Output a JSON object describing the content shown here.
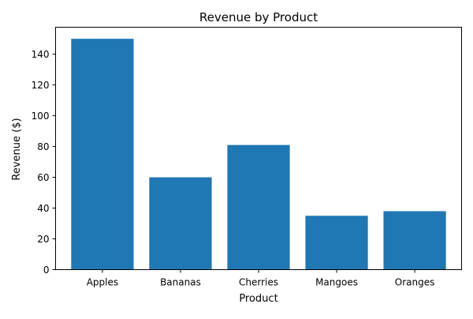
{
  "chart_data": {
    "type": "bar",
    "title": "Revenue by Product",
    "xlabel": "Product",
    "ylabel": "Revenue ($)",
    "categories": [
      "Apples",
      "Bananas",
      "Cherries",
      "Mangoes",
      "Oranges"
    ],
    "values": [
      150,
      60,
      81,
      35,
      38
    ],
    "ylim": [
      0,
      157.5
    ],
    "yticks": [
      0,
      20,
      40,
      60,
      80,
      100,
      120,
      140
    ],
    "grid": false,
    "legend": "none",
    "colors": {
      "bar": "#1f77b4",
      "axis": "#000000",
      "background": "#ffffff"
    }
  }
}
